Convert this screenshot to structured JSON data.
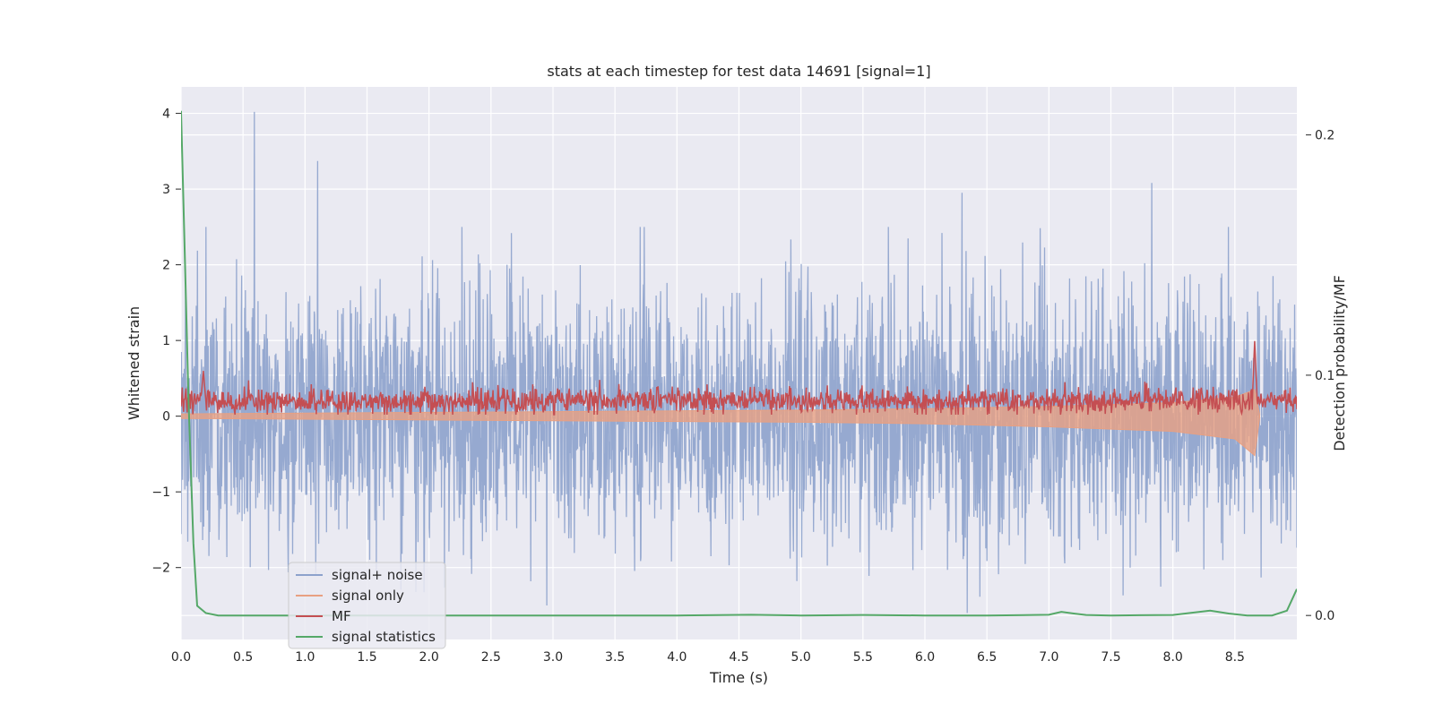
{
  "chart_data": {
    "type": "line",
    "title": "stats at each timestep for test data 14691 [signal=1]",
    "xlabel": "Time (s)",
    "ylabel": "Whitened strain",
    "y2label": "Detection probability/MF",
    "xlim": [
      0.0,
      9.0
    ],
    "ylim": [
      -2.95,
      4.35
    ],
    "y2lim": [
      -0.01,
      0.22
    ],
    "x_ticks": [
      0.0,
      0.5,
      1.0,
      1.5,
      2.0,
      2.5,
      3.0,
      3.5,
      4.0,
      4.5,
      5.0,
      5.5,
      6.0,
      6.5,
      7.0,
      7.5,
      8.0,
      8.5
    ],
    "x_tick_labels": [
      "0.0",
      "0.5",
      "1.0",
      "1.5",
      "2.0",
      "2.5",
      "3.0",
      "3.5",
      "4.0",
      "4.5",
      "5.0",
      "5.5",
      "6.0",
      "6.5",
      "7.0",
      "7.5",
      "8.0",
      "8.5"
    ],
    "y_ticks": [
      -2,
      -1,
      0,
      1,
      2,
      3,
      4
    ],
    "y_tick_labels": [
      "−2",
      "−1",
      "0",
      "1",
      "2",
      "3",
      "4"
    ],
    "y2_ticks": [
      0.0,
      0.1,
      0.2
    ],
    "y2_tick_labels": [
      "0.0",
      "0.1",
      "0.2"
    ],
    "grid": true,
    "legend_position": "lower-left",
    "colors": {
      "background": "#eaeaf2",
      "grid": "#ffffff",
      "signal_noise": "#8da2cc",
      "signal_only": "#e8a082",
      "mf": "#c44e52",
      "signal_statistics": "#55a868"
    },
    "series": [
      {
        "name": "signal+ noise",
        "axis": "left",
        "description": "noisy whitened strain, mostly within [-2.5, 2.5]",
        "peaks": [
          {
            "x": 0.59,
            "y": 4.02
          },
          {
            "x": 1.1,
            "y": 3.37
          },
          {
            "x": 6.3,
            "y": 2.95
          },
          {
            "x": 7.83,
            "y": 3.08
          },
          {
            "x": 6.34,
            "y": -2.6
          },
          {
            "x": 2.95,
            "y": -2.5
          }
        ]
      },
      {
        "name": "signal only",
        "axis": "left",
        "description": "chirp envelope growing toward merger",
        "x": [
          0.0,
          1.0,
          2.0,
          3.0,
          4.0,
          5.0,
          6.0,
          7.0,
          8.0,
          8.5,
          8.66,
          8.7
        ],
        "upper": [
          0.03,
          0.04,
          0.05,
          0.06,
          0.07,
          0.08,
          0.1,
          0.13,
          0.18,
          0.25,
          0.35,
          0.02
        ],
        "lower": [
          -0.03,
          -0.04,
          -0.05,
          -0.06,
          -0.07,
          -0.08,
          -0.1,
          -0.14,
          -0.2,
          -0.3,
          -0.52,
          -0.02
        ]
      },
      {
        "name": "MF",
        "axis": "left",
        "description": "matched-filter output fluctuating around 0.2 with a peak near merger",
        "baseline": 0.2,
        "peaks": [
          {
            "x": 0.18,
            "y": 0.6
          },
          {
            "x": 8.66,
            "y": 1.0
          }
        ]
      },
      {
        "name": "signal statistics",
        "axis": "right",
        "x": [
          0.0,
          0.03,
          0.06,
          0.1,
          0.13,
          0.2,
          0.3,
          0.5,
          1.0,
          2.0,
          3.0,
          4.0,
          4.6,
          5.0,
          5.5,
          6.0,
          6.5,
          7.0,
          7.1,
          7.2,
          7.3,
          7.5,
          8.0,
          8.3,
          8.45,
          8.6,
          8.8,
          8.92,
          9.0
        ],
        "y": [
          0.21,
          0.15,
          0.09,
          0.03,
          0.004,
          0.001,
          0.0,
          0.0,
          0.0,
          0.0,
          0.0,
          0.0,
          0.0003,
          0.0,
          0.0002,
          0.0,
          0.0,
          0.0003,
          0.0015,
          0.0008,
          0.0002,
          0.0,
          0.0002,
          0.002,
          0.0008,
          0.0,
          0.0,
          0.002,
          0.011
        ]
      }
    ]
  }
}
